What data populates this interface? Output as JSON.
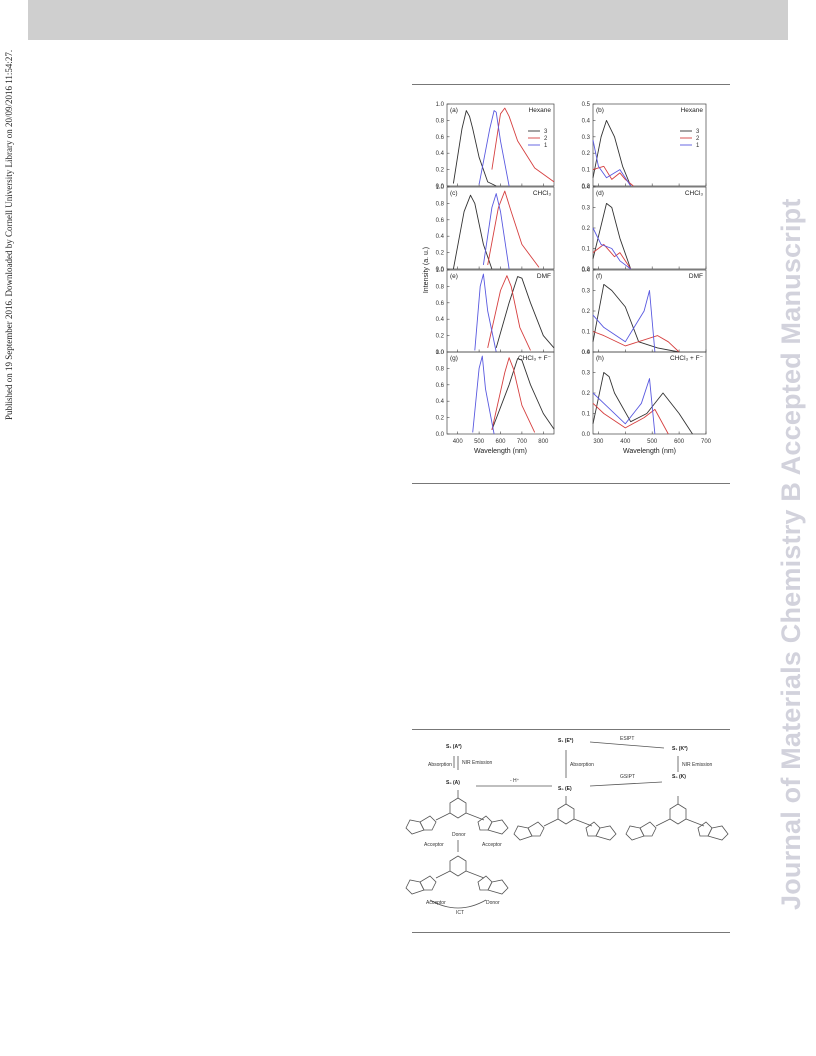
{
  "header": {
    "band": ""
  },
  "side_left": "Published on 19 September 2016. Downloaded by Cornell University Library on 20/09/2016 11:54:27.",
  "side_right": "Journal of Materials Chemistry B Accepted Manuscript",
  "figure": {
    "left_ylabel": "Intensity (a. u.)",
    "xlabel": "Wavelength (nm)",
    "legend": [
      "3",
      "2",
      "1"
    ],
    "colors": {
      "3": "#333333",
      "2": "#d64040",
      "1": "#5a5ae0"
    },
    "panels": [
      {
        "id": "a",
        "label": "(a)",
        "solvent": "Hexane"
      },
      {
        "id": "b",
        "label": "(b)",
        "solvent": "Hexane"
      },
      {
        "id": "c",
        "label": "(c)",
        "solvent": "CHCl₃"
      },
      {
        "id": "d",
        "label": "(d)",
        "solvent": "CHCl₃"
      },
      {
        "id": "e",
        "label": "(e)",
        "solvent": "DMF"
      },
      {
        "id": "f",
        "label": "(f)",
        "solvent": "DMF"
      },
      {
        "id": "g",
        "label": "(g)",
        "solvent": "CHCl₃ + F⁻"
      },
      {
        "id": "h",
        "label": "(h)",
        "solvent": "CHCl₃ + F⁻"
      }
    ],
    "left_yticks": [
      "0.0",
      "0.2",
      "0.4",
      "0.6",
      "0.8",
      "1.0"
    ],
    "left_xticks": [
      "400",
      "500",
      "600",
      "700",
      "800"
    ],
    "right_xticks": [
      "300",
      "400",
      "500",
      "600",
      "700"
    ],
    "right_yticks": {
      "b": [
        "0.0",
        "0.1",
        "0.2",
        "0.3",
        "0.4",
        "0.5"
      ],
      "d": [
        "0.0",
        "0.1",
        "0.2",
        "0.3",
        "0.4"
      ],
      "f": [
        "0.0",
        "0.1",
        "0.2",
        "0.3",
        "0.4"
      ],
      "h": [
        "0.0",
        "0.1",
        "0.2",
        "0.3",
        "0.4"
      ]
    }
  },
  "scheme": {
    "s1_left": "S₁ (A*)",
    "s0_left": "S₀ (A)",
    "absorption_left": "Absorption",
    "nir_left": "NIR Emission",
    "s1_mid": "S₁ (E*)",
    "s0_mid": "S₀ (E)",
    "absorption_mid": "Absorption",
    "s1_right": "S₁ (K*)",
    "s0_right": "S₀ (K)",
    "nir_right": "NIR Emission",
    "esipt": "ESIPT",
    "gsipt": "GSIPT",
    "h_loss": "- H⁺",
    "donor": "Donor",
    "acceptor": "Acceptor",
    "ict": "ICT"
  },
  "chart_data": [
    {
      "type": "line",
      "id": "a",
      "solvent": "Hexane",
      "xlim": [
        350,
        850
      ],
      "ylim": [
        0,
        1.0
      ],
      "series": [
        {
          "name": "3",
          "x": [
            380,
            420,
            440,
            455,
            470,
            500,
            540,
            580
          ],
          "y": [
            0.03,
            0.7,
            0.92,
            0.85,
            0.7,
            0.35,
            0.05,
            0.0
          ]
        },
        {
          "name": "2",
          "x": [
            560,
            600,
            620,
            640,
            680,
            760,
            850
          ],
          "y": [
            0.2,
            0.88,
            0.95,
            0.85,
            0.55,
            0.22,
            0.05
          ]
        },
        {
          "name": "1",
          "x": [
            500,
            550,
            570,
            580,
            600,
            640
          ],
          "y": [
            0.02,
            0.7,
            0.92,
            0.9,
            0.55,
            0.0
          ]
        }
      ]
    },
    {
      "type": "line",
      "id": "b",
      "solvent": "Hexane",
      "xlim": [
        280,
        700
      ],
      "ylim": [
        0,
        0.5
      ],
      "series": [
        {
          "name": "3",
          "x": [
            280,
            310,
            330,
            360,
            390,
            420
          ],
          "y": [
            0.05,
            0.3,
            0.4,
            0.3,
            0.12,
            0.0
          ]
        },
        {
          "name": "2",
          "x": [
            280,
            320,
            350,
            380,
            400,
            430
          ],
          "y": [
            0.1,
            0.12,
            0.04,
            0.08,
            0.04,
            0.0
          ]
        },
        {
          "name": "1",
          "x": [
            280,
            300,
            330,
            360,
            380,
            420
          ],
          "y": [
            0.28,
            0.12,
            0.05,
            0.08,
            0.1,
            0.0
          ]
        }
      ]
    },
    {
      "type": "line",
      "id": "c",
      "solvent": "CHCl₃",
      "xlim": [
        350,
        850
      ],
      "ylim": [
        0,
        1.0
      ],
      "series": [
        {
          "name": "3",
          "x": [
            380,
            430,
            460,
            480,
            520,
            560
          ],
          "y": [
            0.0,
            0.7,
            0.9,
            0.8,
            0.3,
            0.0
          ]
        },
        {
          "name": "2",
          "x": [
            540,
            590,
            620,
            650,
            700,
            780
          ],
          "y": [
            0.05,
            0.75,
            0.95,
            0.7,
            0.3,
            0.02
          ]
        },
        {
          "name": "1",
          "x": [
            520,
            560,
            580,
            600,
            640
          ],
          "y": [
            0.05,
            0.75,
            0.92,
            0.7,
            0.0
          ]
        }
      ]
    },
    {
      "type": "line",
      "id": "d",
      "solvent": "CHCl₃",
      "xlim": [
        280,
        700
      ],
      "ylim": [
        0,
        0.4
      ],
      "series": [
        {
          "name": "3",
          "x": [
            280,
            330,
            350,
            380,
            420
          ],
          "y": [
            0.05,
            0.32,
            0.3,
            0.15,
            0.0
          ]
        },
        {
          "name": "2",
          "x": [
            280,
            320,
            360,
            380,
            420
          ],
          "y": [
            0.08,
            0.12,
            0.06,
            0.08,
            0.0
          ]
        },
        {
          "name": "1",
          "x": [
            280,
            310,
            350,
            380,
            420
          ],
          "y": [
            0.2,
            0.12,
            0.1,
            0.04,
            0.0
          ]
        }
      ]
    },
    {
      "type": "line",
      "id": "e",
      "solvent": "DMF",
      "xlim": [
        350,
        850
      ],
      "ylim": [
        0,
        1.0
      ],
      "series": [
        {
          "name": "3",
          "x": [
            580,
            640,
            680,
            700,
            740,
            800,
            850
          ],
          "y": [
            0.05,
            0.6,
            0.92,
            0.9,
            0.6,
            0.2,
            0.05
          ]
        },
        {
          "name": "2",
          "x": [
            540,
            600,
            630,
            650,
            690,
            740
          ],
          "y": [
            0.05,
            0.75,
            0.93,
            0.8,
            0.3,
            0.02
          ]
        },
        {
          "name": "1",
          "x": [
            480,
            505,
            520,
            540,
            580
          ],
          "y": [
            0.02,
            0.8,
            0.95,
            0.5,
            0.0
          ]
        }
      ]
    },
    {
      "type": "line",
      "id": "f",
      "solvent": "DMF",
      "xlim": [
        280,
        700
      ],
      "ylim": [
        0,
        0.4
      ],
      "series": [
        {
          "name": "3",
          "x": [
            280,
            320,
            350,
            400,
            450,
            520,
            600
          ],
          "y": [
            0.05,
            0.33,
            0.3,
            0.22,
            0.05,
            0.02,
            0.0
          ]
        },
        {
          "name": "2",
          "x": [
            280,
            320,
            400,
            520,
            560,
            600
          ],
          "y": [
            0.1,
            0.08,
            0.03,
            0.08,
            0.05,
            0.0
          ]
        },
        {
          "name": "1",
          "x": [
            280,
            320,
            400,
            470,
            490,
            510
          ],
          "y": [
            0.18,
            0.12,
            0.05,
            0.2,
            0.3,
            0.0
          ]
        }
      ]
    },
    {
      "type": "line",
      "id": "g",
      "solvent": "CHCl₃ + F⁻",
      "xlim": [
        350,
        850
      ],
      "ylim": [
        0,
        1.0
      ],
      "series": [
        {
          "name": "3",
          "x": [
            560,
            640,
            680,
            700,
            740,
            800,
            850
          ],
          "y": [
            0.05,
            0.6,
            0.92,
            0.9,
            0.6,
            0.25,
            0.06
          ]
        },
        {
          "name": "2",
          "x": [
            560,
            620,
            640,
            660,
            700,
            760
          ],
          "y": [
            0.05,
            0.75,
            0.93,
            0.8,
            0.35,
            0.02
          ]
        },
        {
          "name": "1",
          "x": [
            470,
            500,
            515,
            530,
            570
          ],
          "y": [
            0.02,
            0.8,
            0.95,
            0.55,
            0.0
          ]
        }
      ]
    },
    {
      "type": "line",
      "id": "h",
      "solvent": "CHCl₃ + F⁻",
      "xlim": [
        280,
        700
      ],
      "ylim": [
        0,
        0.4
      ],
      "series": [
        {
          "name": "3",
          "x": [
            280,
            320,
            340,
            360,
            420,
            480,
            540,
            600,
            650
          ],
          "y": [
            0.05,
            0.3,
            0.28,
            0.2,
            0.06,
            0.1,
            0.2,
            0.1,
            0.0
          ]
        },
        {
          "name": "2",
          "x": [
            280,
            320,
            400,
            470,
            510,
            560
          ],
          "y": [
            0.15,
            0.1,
            0.03,
            0.08,
            0.12,
            0.0
          ]
        },
        {
          "name": "1",
          "x": [
            280,
            320,
            400,
            460,
            490,
            510
          ],
          "y": [
            0.2,
            0.15,
            0.05,
            0.15,
            0.27,
            0.0
          ]
        }
      ]
    }
  ]
}
